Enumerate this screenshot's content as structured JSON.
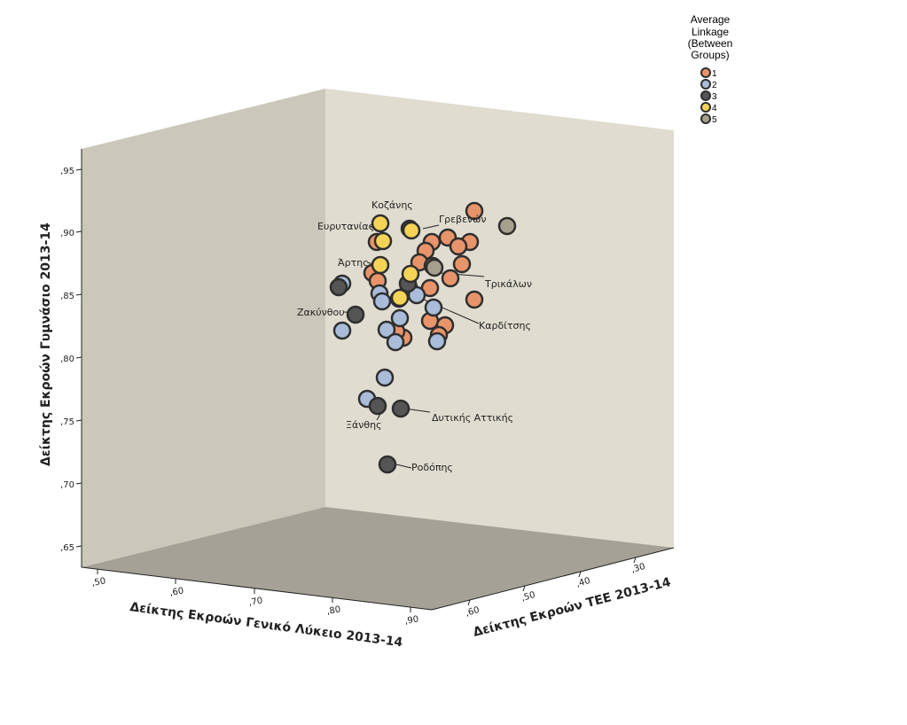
{
  "chart_data": {
    "type": "scatter",
    "title": "",
    "axes": {
      "y": {
        "label": "Δείκτης Εκροών Γυμνάσιο 2013-14",
        "ticks": [
          ",65",
          ",70",
          ",75",
          ",80",
          ",85",
          ",90",
          ",95"
        ],
        "range": [
          0.64,
          0.96
        ]
      },
      "x": {
        "label": "Δείκτης Εκροών Γενικό Λύκειο 2013-14",
        "ticks": [
          ",50",
          ",60",
          ",70",
          ",80",
          ",90"
        ],
        "range": [
          0.47,
          0.92
        ]
      },
      "z": {
        "label": "Δείκτης Εκροών ΤΕΕ 2013-14",
        "ticks": [
          ",60",
          ",50",
          ",40",
          ",30"
        ],
        "range": [
          0.25,
          0.65
        ]
      }
    },
    "legend": {
      "title_lines": [
        "Average",
        "Linkage",
        "(Between",
        "Groups)"
      ],
      "placement": "top-right",
      "entries": [
        {
          "name": "1",
          "color": "#E8946A"
        },
        {
          "name": "2",
          "color": "#A9BCD9"
        },
        {
          "name": "3",
          "color": "#555555"
        },
        {
          "name": "4",
          "color": "#F5D356"
        },
        {
          "name": "5",
          "color": "#A69F8C"
        }
      ]
    },
    "colors": {
      "back_wall": "#E0DCD0",
      "side_wall": "#CBC7BA",
      "floor": "#A5A196",
      "marker_outline": "#2E2E2E",
      "leader_line": "#222222"
    },
    "labels": [
      {
        "text": "Κοζάνης"
      },
      {
        "text": "Γρεβενών"
      },
      {
        "text": "Ευρυτανίας"
      },
      {
        "text": "Άρτης"
      },
      {
        "text": "Τρικάλων"
      },
      {
        "text": "Ζακύνθου"
      },
      {
        "text": "Καρδίτσης"
      },
      {
        "text": "Ξάνθης"
      },
      {
        "text": "Δυτικής Αττικής"
      },
      {
        "text": "Ροδόπης"
      }
    ]
  }
}
